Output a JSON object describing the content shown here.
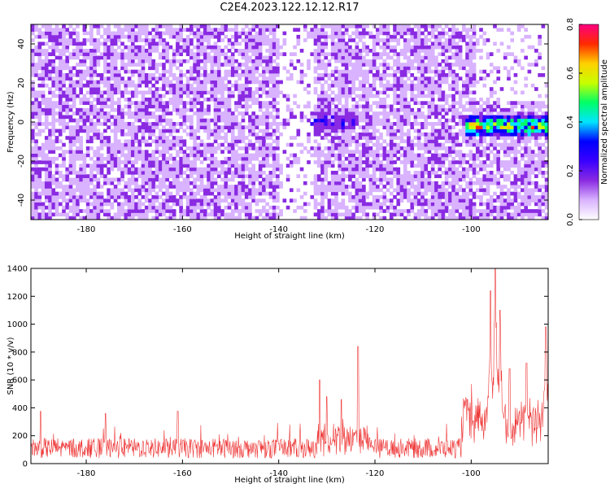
{
  "title": "C2E4.2023.122.12.12.R17",
  "chart_data": [
    {
      "type": "heatmap",
      "xlabel": "Height of straight line (km)",
      "ylabel": "Frequency (Hz)",
      "xlim": [
        -191.5,
        -84
      ],
      "ylim": [
        -50,
        50
      ],
      "x_ticks": [
        -180,
        -160,
        -140,
        -120,
        -100
      ],
      "y_ticks": [
        -40,
        -20,
        0,
        20,
        40
      ],
      "colorbar": {
        "label": "Normalized spectral amplitude",
        "range": [
          0,
          0.8
        ],
        "ticks": [
          "0.0",
          "0.2",
          "0.4",
          "0.6",
          "0.8"
        ],
        "colors": [
          "#ffffff",
          "#d9b3ff",
          "#8a2be2",
          "#3a00ff",
          "#0000ff",
          "#00e5ff",
          "#00ff66",
          "#c8ff00",
          "#ffd000",
          "#ff2a00",
          "#ff0080"
        ]
      },
      "features": [
        {
          "x_range": [
            -134,
            -124
          ],
          "y_center": 0,
          "peak_amplitude": 0.35
        },
        {
          "x_range": [
            -101,
            -84
          ],
          "y_center": -2,
          "peak_amplitude": 0.8
        },
        {
          "x_range": [
            -140,
            -133
          ],
          "y_range": [
            -50,
            50
          ],
          "note_level": 0
        },
        {
          "x_range": [
            -99,
            -84
          ],
          "y_range": [
            10,
            50
          ],
          "note_level": 0
        }
      ],
      "background_amplitude": [
        0.05,
        0.15
      ]
    },
    {
      "type": "line",
      "xlabel": "Height of straight line (km)",
      "ylabel": "SNR (10 * v/v)",
      "xlim": [
        -191.5,
        -84
      ],
      "ylim": [
        0,
        1400
      ],
      "x_ticks": [
        -180,
        -160,
        -140,
        -120,
        -100
      ],
      "y_ticks": [
        0,
        200,
        400,
        600,
        800,
        1000,
        1200,
        1400
      ],
      "series": [
        {
          "color": "#ee3333",
          "baseline": 130,
          "noise_peaks": [
            {
              "x": -189.5,
              "y": 375
            },
            {
              "x": -176.0,
              "y": 360
            },
            {
              "x": -161.0,
              "y": 375
            },
            {
              "x": -131.5,
              "y": 600
            },
            {
              "x": -130.0,
              "y": 480
            },
            {
              "x": -127.0,
              "y": 460
            },
            {
              "x": -123.5,
              "y": 840
            },
            {
              "x": -100.8,
              "y": 460
            },
            {
              "x": -96.0,
              "y": 1240
            },
            {
              "x": -95.0,
              "y": 1400
            },
            {
              "x": -94.0,
              "y": 1100
            },
            {
              "x": -92.0,
              "y": 680
            },
            {
              "x": -88.5,
              "y": 720
            },
            {
              "x": -84.5,
              "y": 980
            }
          ]
        }
      ]
    }
  ]
}
